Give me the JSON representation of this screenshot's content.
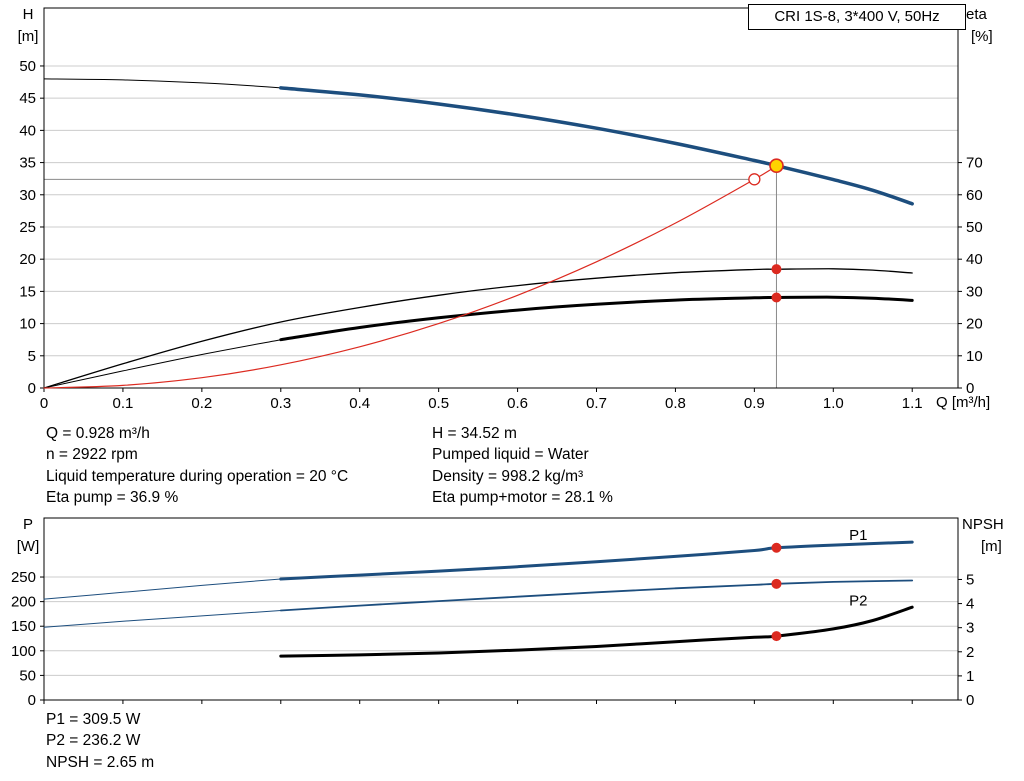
{
  "page": {
    "title_box": "CRI 1S-8, 3*400 V, 50Hz"
  },
  "colors": {
    "grid": "#cccccc",
    "guide": "#8a8a8a",
    "red": "#dc2a20",
    "duty_fill": "#ffd400",
    "blue": "#1d4e7e"
  },
  "axis_labels": {
    "top_left": "H",
    "top_left_unit": "[m]",
    "top_right": "eta",
    "top_right_unit": "[%]",
    "x_unit": "Q [m³/h]",
    "bottom_left": "P",
    "bottom_left_unit": "[W]",
    "bottom_right": "NPSH",
    "bottom_right_unit": "[m]"
  },
  "info": {
    "left": [
      "Q = 0.928 m³/h",
      "n = 2922 rpm",
      "Liquid temperature during operation = 20 °C",
      "Eta pump = 36.9 %"
    ],
    "right": [
      "H = 34.52 m",
      "Pumped liquid = Water",
      "Density = 998.2 kg/m³",
      "Eta pump+motor = 28.1 %"
    ],
    "bottom": [
      "P1 = 309.5 W",
      "P2 = 236.2 W",
      "NPSH = 2.65 m"
    ]
  },
  "chart_data": [
    {
      "type": "line",
      "name": "qh-eta-chart",
      "title": "CRI 1S-8, 3*400 V, 50Hz",
      "xlabel": "Q [m³/h]",
      "ylabel_left": "H [m]",
      "ylabel_right": "eta [%]",
      "xlim": [
        0,
        1.158
      ],
      "ylim_left": [
        0,
        59
      ],
      "ylim_right": [
        0,
        118
      ],
      "x_ticks": [
        0,
        0.1,
        0.2,
        0.3,
        0.4,
        0.5,
        0.6,
        0.7,
        0.8,
        0.9,
        1.0,
        1.1
      ],
      "x_tick_labels": [
        "0",
        "0.1",
        "0.2",
        "0.3",
        "0.4",
        "0.5",
        "0.6",
        "0.7",
        "0.8",
        "0.9",
        "1.0",
        "1.1"
      ],
      "show_x_tick_labels": true,
      "y_ticks_left": [
        0,
        5,
        10,
        15,
        20,
        25,
        30,
        35,
        40,
        45,
        50
      ],
      "y_ticks_right": [
        0,
        10,
        20,
        30,
        40,
        50,
        60,
        70
      ],
      "series": [
        {
          "name": "H-full-range",
          "axis": "left",
          "color": "#000000",
          "width": 1,
          "points": [
            [
              0,
              48.0
            ],
            [
              0.1,
              47.84
            ],
            [
              0.2,
              47.37
            ],
            [
              0.3,
              46.59
            ],
            [
              0.4,
              45.5
            ],
            [
              0.5,
              44.09
            ],
            [
              0.6,
              42.37
            ],
            [
              0.7,
              40.33
            ],
            [
              0.8,
              37.98
            ],
            [
              0.9,
              35.32
            ],
            [
              0.928,
              34.52
            ],
            [
              1.0,
              32.35
            ],
            [
              1.05,
              30.7
            ],
            [
              1.1,
              28.6
            ]
          ]
        },
        {
          "name": "H-duty-range",
          "axis": "left",
          "color": "#1d4e7e",
          "width": 3.5,
          "points": [
            [
              0.3,
              46.59
            ],
            [
              0.4,
              45.5
            ],
            [
              0.5,
              44.09
            ],
            [
              0.6,
              42.37
            ],
            [
              0.7,
              40.33
            ],
            [
              0.8,
              37.98
            ],
            [
              0.9,
              35.32
            ],
            [
              0.928,
              34.52
            ],
            [
              1.0,
              32.35
            ],
            [
              1.05,
              30.7
            ],
            [
              1.1,
              28.6
            ]
          ]
        },
        {
          "name": "eta-pump",
          "axis": "right",
          "color": "#000000",
          "width": 1.3,
          "points": [
            [
              0,
              0
            ],
            [
              0.1,
              7.5
            ],
            [
              0.2,
              14.5
            ],
            [
              0.3,
              20.5
            ],
            [
              0.4,
              25
            ],
            [
              0.5,
              28.8
            ],
            [
              0.6,
              31.8
            ],
            [
              0.7,
              34.1
            ],
            [
              0.8,
              35.8
            ],
            [
              0.9,
              36.8
            ],
            [
              0.928,
              36.9
            ],
            [
              1.0,
              37.0
            ],
            [
              1.05,
              36.6
            ],
            [
              1.1,
              35.7
            ]
          ]
        },
        {
          "name": "eta-pump-motor-ext",
          "axis": "right",
          "color": "#000000",
          "width": 1,
          "points": [
            [
              0,
              0
            ],
            [
              0.1,
              5.3
            ],
            [
              0.2,
              10.4
            ],
            [
              0.3,
              15.0
            ]
          ]
        },
        {
          "name": "eta-pump-motor",
          "axis": "right",
          "color": "#000000",
          "width": 3,
          "points": [
            [
              0.3,
              15.0
            ],
            [
              0.4,
              18.8
            ],
            [
              0.5,
              21.8
            ],
            [
              0.6,
              24.2
            ],
            [
              0.7,
              26.0
            ],
            [
              0.8,
              27.3
            ],
            [
              0.9,
              28.0
            ],
            [
              0.928,
              28.1
            ],
            [
              1.0,
              28.2
            ],
            [
              1.05,
              27.9
            ],
            [
              1.1,
              27.2
            ]
          ]
        },
        {
          "name": "system-curve",
          "axis": "left",
          "color": "#dc2a20",
          "width": 1.2,
          "points": [
            [
              0,
              0
            ],
            [
              0.1,
              0.4
            ],
            [
              0.2,
              1.6
            ],
            [
              0.3,
              3.6
            ],
            [
              0.4,
              6.4
            ],
            [
              0.5,
              10.0
            ],
            [
              0.6,
              14.4
            ],
            [
              0.7,
              19.6
            ],
            [
              0.8,
              25.6
            ],
            [
              0.9,
              32.4
            ],
            [
              0.928,
              34.5
            ]
          ]
        }
      ],
      "guides": [
        {
          "type": "h",
          "y": 32.4,
          "x1": 0,
          "x2": 0.9
        },
        {
          "type": "v",
          "x": 0.928,
          "y1": 0,
          "y2": 34.52
        }
      ],
      "markers": [
        {
          "shape": "open",
          "x": 0.9,
          "y": 32.4,
          "axis": "left"
        },
        {
          "shape": "duty",
          "x": 0.928,
          "y": 34.52,
          "axis": "left"
        },
        {
          "shape": "dot",
          "x": 0.928,
          "y": 36.9,
          "axis": "right"
        },
        {
          "shape": "dot",
          "x": 0.928,
          "y": 28.1,
          "axis": "right"
        }
      ],
      "annotations": []
    },
    {
      "type": "line",
      "name": "power-npsh-chart",
      "title": "",
      "xlabel": "Q [m³/h]",
      "ylabel_left": "P [W]",
      "ylabel_right": "NPSH [m]",
      "xlim": [
        0,
        1.158
      ],
      "ylim_left": [
        0,
        370
      ],
      "ylim_right": [
        0,
        7.55
      ],
      "x_ticks": [
        0,
        0.1,
        0.2,
        0.3,
        0.4,
        0.5,
        0.6,
        0.7,
        0.8,
        0.9,
        1.0,
        1.1
      ],
      "x_tick_labels": [
        "0",
        "0.1",
        "0.2",
        "0.3",
        "0.4",
        "0.5",
        "0.6",
        "0.7",
        "0.8",
        "0.9",
        "1.0",
        "1.1"
      ],
      "show_x_tick_labels": false,
      "y_ticks_left": [
        0,
        50,
        100,
        150,
        200,
        250
      ],
      "y_ticks_right": [
        0,
        1,
        2,
        3,
        4,
        5
      ],
      "series": [
        {
          "name": "P1-ext",
          "axis": "left",
          "color": "#1d4e7e",
          "width": 1,
          "points": [
            [
              0,
              205
            ],
            [
              0.1,
              219
            ],
            [
              0.2,
              233
            ],
            [
              0.3,
              246
            ]
          ]
        },
        {
          "name": "P1",
          "axis": "left",
          "color": "#1d4e7e",
          "width": 3,
          "points": [
            [
              0.3,
              246
            ],
            [
              0.4,
              254
            ],
            [
              0.5,
              262
            ],
            [
              0.6,
              271
            ],
            [
              0.7,
              281
            ],
            [
              0.8,
              292
            ],
            [
              0.9,
              304
            ],
            [
              0.928,
              309.5
            ],
            [
              1.0,
              315
            ],
            [
              1.1,
              321
            ]
          ]
        },
        {
          "name": "P2-ext",
          "axis": "left",
          "color": "#1d4e7e",
          "width": 1,
          "points": [
            [
              0,
              148
            ],
            [
              0.1,
              160
            ],
            [
              0.2,
              171
            ],
            [
              0.3,
              182
            ]
          ]
        },
        {
          "name": "P2",
          "axis": "left",
          "color": "#1d4e7e",
          "width": 1.8,
          "points": [
            [
              0.3,
              182
            ],
            [
              0.4,
              192
            ],
            [
              0.5,
              201
            ],
            [
              0.6,
              210
            ],
            [
              0.7,
              219
            ],
            [
              0.8,
              227
            ],
            [
              0.9,
              234
            ],
            [
              0.928,
              236.2
            ],
            [
              1.0,
              240
            ],
            [
              1.1,
              243
            ]
          ]
        },
        {
          "name": "NPSH",
          "axis": "right",
          "color": "#000000",
          "width": 3,
          "points": [
            [
              0.3,
              1.82
            ],
            [
              0.4,
              1.87
            ],
            [
              0.5,
              1.95
            ],
            [
              0.6,
              2.07
            ],
            [
              0.7,
              2.22
            ],
            [
              0.8,
              2.42
            ],
            [
              0.9,
              2.6
            ],
            [
              0.928,
              2.65
            ],
            [
              1.0,
              2.95
            ],
            [
              1.05,
              3.3
            ],
            [
              1.1,
              3.85
            ]
          ]
        }
      ],
      "guides": [],
      "markers": [
        {
          "shape": "dot",
          "x": 0.928,
          "y": 309.5,
          "axis": "left"
        },
        {
          "shape": "dot",
          "x": 0.928,
          "y": 236.2,
          "axis": "left"
        },
        {
          "shape": "dot",
          "x": 0.928,
          "y": 2.65,
          "axis": "right"
        }
      ],
      "annotations": [
        {
          "text": "P1",
          "x": 1.02,
          "y": 325,
          "axis": "left",
          "color": "#1d4e7e"
        },
        {
          "text": "P2",
          "x": 1.02,
          "y": 192,
          "axis": "left",
          "color": "#1d4e7e"
        }
      ]
    }
  ]
}
